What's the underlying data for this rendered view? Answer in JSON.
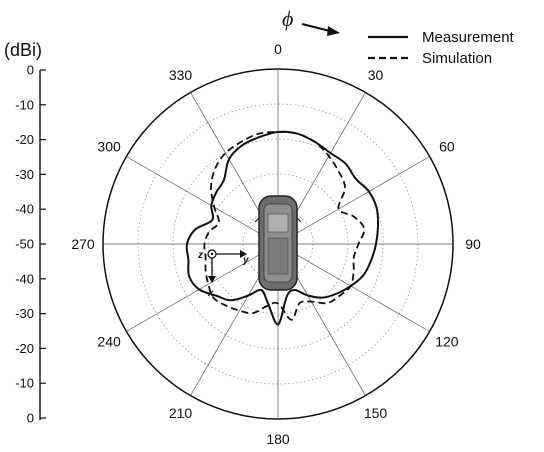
{
  "chart_data": {
    "type": "polar-line",
    "unit_label": "(dBi)",
    "phi_label": "ϕ",
    "radial_axis": {
      "range": [
        -50,
        0
      ],
      "tick_labels_top": [
        "0",
        "-10",
        "-20",
        "-30",
        "-40",
        "-50"
      ],
      "tick_labels_bottom": [
        "-40",
        "-30",
        "-20",
        "-10",
        "0"
      ]
    },
    "angle_ticks": [
      "0",
      "30",
      "60",
      "90",
      "120",
      "150",
      "180",
      "210",
      "240",
      "270",
      "300",
      "330"
    ],
    "legend": [
      {
        "label": "Measurement",
        "style": "solid"
      },
      {
        "label": "Simulation",
        "style": "dashed"
      }
    ],
    "inset_axes": {
      "z": "z",
      "y": "y",
      "x": "x"
    },
    "series": [
      {
        "name": "Measurement",
        "style": "solid",
        "angles_deg": [
          0,
          10,
          20,
          30,
          40,
          50,
          60,
          70,
          80,
          90,
          100,
          110,
          120,
          130,
          140,
          150,
          160,
          170,
          180,
          190,
          200,
          210,
          220,
          230,
          240,
          250,
          260,
          270,
          280,
          290,
          300,
          310,
          320,
          330,
          340,
          350
        ],
        "gain_dbi": [
          -18,
          -18,
          -19,
          -20,
          -20,
          -21,
          -20,
          -20,
          -21,
          -22,
          -23,
          -24,
          -26,
          -28,
          -30,
          -33,
          -36,
          -35,
          -27,
          -33,
          -36,
          -33,
          -29,
          -27,
          -24,
          -23,
          -24,
          -24,
          -26,
          -30,
          -28,
          -27,
          -26,
          -22,
          -20,
          -19
        ]
      },
      {
        "name": "Simulation",
        "style": "dashed",
        "angles_deg": [
          0,
          10,
          20,
          30,
          40,
          50,
          60,
          70,
          80,
          90,
          100,
          110,
          120,
          130,
          140,
          150,
          160,
          170,
          180,
          190,
          200,
          210,
          220,
          230,
          240,
          250,
          260,
          270,
          280,
          290,
          300,
          310,
          320,
          330,
          340,
          350
        ],
        "gain_dbi": [
          -18,
          -18,
          -19,
          -21,
          -23,
          -25,
          -30,
          -27,
          -25,
          -27,
          -28,
          -27,
          -26,
          -27,
          -28,
          -31,
          -32,
          -28,
          -33,
          -32,
          -29,
          -28,
          -27,
          -26,
          -27,
          -28,
          -29,
          -29,
          -30,
          -32,
          -29,
          -25,
          -22,
          -20,
          -19,
          -18
        ]
      }
    ]
  }
}
